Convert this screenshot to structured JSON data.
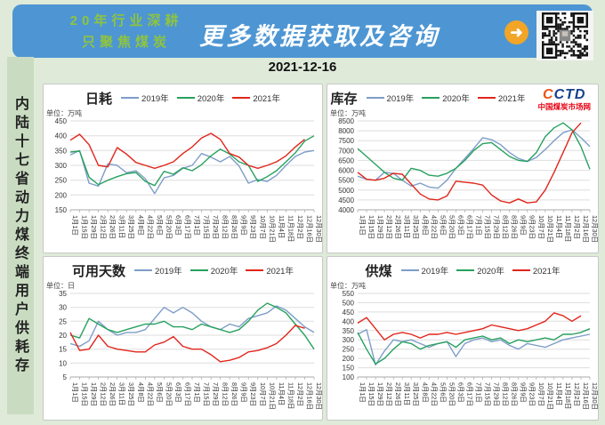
{
  "banner": {
    "tagline_line1": "20年行业深耕",
    "tagline_line2": "只聚焦煤炭",
    "headline": "更多数据获取及咨询",
    "arrow_icon": "➜"
  },
  "report_date": "2021-12-16",
  "sidebar": {
    "vertical_text": "内陆十七省动力煤终端用户供耗存"
  },
  "logo": {
    "text_part1": "C",
    "text_part2": "CTD",
    "subtitle": "中国煤炭市场网"
  },
  "watermark_text": "CCTD",
  "colors": {
    "banner_bg": "#4d96d3",
    "tagline_green": "#8fc43f",
    "arrow_orange": "#f2a527",
    "series_2019": "#7e9dc8",
    "series_2020": "#27a15f",
    "series_2021": "#e1251b",
    "logo_orange": "#ea5514",
    "logo_blue": "#16408c",
    "logo_red": "#e60012"
  },
  "chart_data": [
    {
      "type": "line",
      "title": "日耗",
      "unit": "单位：万吨",
      "ylim": [
        150,
        450
      ],
      "yticks": [
        450,
        400,
        350,
        300,
        250,
        200,
        150
      ],
      "categories": [
        "1月1日",
        "1月15日",
        "1月29日",
        "2月12日",
        "2月26日",
        "3月11日",
        "3月25日",
        "4月8日",
        "4月22日",
        "5月6日",
        "5月20日",
        "6月3日",
        "6月17日",
        "7月1日",
        "7月15日",
        "7月29日",
        "8月12日",
        "8月26日",
        "9月9日",
        "9月23日",
        "10月7日",
        "10月21日",
        "11月4日",
        "11月18日",
        "12月2日",
        "12月16日",
        "12月30日"
      ],
      "series": [
        {
          "name": "2019年",
          "color": "#7e9dc8",
          "values": [
            335,
            350,
            240,
            230,
            305,
            300,
            275,
            282,
            255,
            205,
            258,
            266,
            290,
            300,
            340,
            328,
            312,
            330,
            298,
            240,
            252,
            246,
            266,
            300,
            330,
            345,
            350
          ]
        },
        {
          "name": "2020年",
          "color": "#27a15f",
          "values": [
            345,
            348,
            260,
            235,
            250,
            262,
            272,
            276,
            246,
            232,
            280,
            270,
            292,
            282,
            302,
            332,
            355,
            338,
            312,
            300,
            246,
            262,
            282,
            312,
            342,
            382,
            400
          ]
        },
        {
          "name": "2021年",
          "color": "#e1251b",
          "values": [
            385,
            405,
            370,
            300,
            295,
            360,
            338,
            310,
            300,
            290,
            300,
            312,
            340,
            362,
            392,
            408,
            388,
            340,
            328,
            300,
            290,
            300,
            312,
            332,
            362,
            388,
            null
          ]
        }
      ]
    },
    {
      "type": "line",
      "title": "库存",
      "unit": "单位：万吨",
      "ylim": [
        4000,
        8500
      ],
      "yticks": [
        8500,
        8000,
        7500,
        7000,
        6500,
        6000,
        5500,
        5000,
        4500,
        4000
      ],
      "categories": [
        "1月1日",
        "1月15日",
        "1月29日",
        "2月12日",
        "2月26日",
        "3月11日",
        "3月25日",
        "4月8日",
        "4月22日",
        "5月6日",
        "5月20日",
        "6月3日",
        "6月17日",
        "7月1日",
        "7月15日",
        "7月29日",
        "8月12日",
        "8月26日",
        "9月9日",
        "9月23日",
        "10月7日",
        "10月21日",
        "11月4日",
        "11月18日",
        "12月2日",
        "12月16日",
        "12月30日"
      ],
      "series": [
        {
          "name": "2019年",
          "color": "#7e9dc8",
          "values": [
            5700,
            5550,
            5500,
            5900,
            5850,
            5500,
            5200,
            5350,
            5150,
            5100,
            5500,
            6100,
            6600,
            7100,
            7650,
            7550,
            7300,
            6900,
            6600,
            6450,
            6650,
            7050,
            7500,
            7900,
            8050,
            7650,
            7200
          ]
        },
        {
          "name": "2020年",
          "color": "#27a15f",
          "values": [
            7100,
            6700,
            6300,
            5900,
            5600,
            5500,
            6100,
            6000,
            5750,
            5700,
            5850,
            6100,
            6500,
            7000,
            7350,
            7400,
            7050,
            6700,
            6500,
            6450,
            6900,
            7700,
            8150,
            8400,
            8050,
            7200,
            6050
          ]
        },
        {
          "name": "2021年",
          "color": "#e1251b",
          "values": [
            5900,
            5550,
            5500,
            5600,
            5850,
            5800,
            5300,
            4800,
            4550,
            4500,
            4700,
            5450,
            5400,
            5350,
            5250,
            4750,
            4450,
            4350,
            4550,
            4350,
            4400,
            5000,
            5900,
            6900,
            7900,
            8400,
            null
          ]
        }
      ]
    },
    {
      "type": "line",
      "title": "可用天数",
      "unit": "单位：日",
      "ylim": [
        5,
        35
      ],
      "yticks": [
        35,
        30,
        25,
        20,
        15,
        10,
        5
      ],
      "categories": [
        "1月1日",
        "1月15日",
        "1月29日",
        "2月12日",
        "2月26日",
        "3月11日",
        "3月25日",
        "4月8日",
        "4月22日",
        "5月6日",
        "5月20日",
        "6月3日",
        "6月17日",
        "7月1日",
        "7月15日",
        "7月29日",
        "8月12日",
        "8月26日",
        "9月9日",
        "9月23日",
        "10月7日",
        "10月21日",
        "11月4日",
        "11月18日",
        "12月2日",
        "12月16日",
        "12月30日"
      ],
      "series": [
        {
          "name": "2019年",
          "color": "#7e9dc8",
          "values": [
            17,
            16,
            18,
            25,
            22,
            20,
            21,
            21,
            22,
            26,
            30,
            28,
            30,
            28,
            25,
            23,
            22,
            24,
            23,
            26,
            27,
            28,
            30.5,
            29,
            26,
            23,
            21
          ]
        },
        {
          "name": "2020年",
          "color": "#27a15f",
          "values": [
            20,
            19,
            26,
            24,
            22,
            21,
            22,
            23,
            24,
            24,
            25,
            23,
            23,
            22,
            24,
            23,
            22,
            21,
            22,
            25,
            29,
            31.5,
            30,
            28,
            24,
            20,
            15
          ]
        },
        {
          "name": "2021年",
          "color": "#e1251b",
          "values": [
            21,
            14.5,
            15,
            20,
            16,
            15,
            14.5,
            14,
            14,
            16.5,
            17.5,
            19.5,
            16,
            15,
            15,
            13,
            10.5,
            11,
            12,
            14,
            14.5,
            15.5,
            17,
            20,
            23.5,
            22.5,
            null
          ]
        }
      ]
    },
    {
      "type": "line",
      "title": "供煤",
      "unit": "单位：万吨",
      "ylim": [
        100,
        550
      ],
      "yticks": [
        550,
        500,
        450,
        400,
        350,
        300,
        250,
        200,
        150,
        100
      ],
      "categories": [
        "1月1日",
        "1月15日",
        "1月29日",
        "2月12日",
        "2月26日",
        "3月11日",
        "3月25日",
        "4月8日",
        "4月22日",
        "5月6日",
        "5月20日",
        "6月3日",
        "6月17日",
        "7月1日",
        "7月15日",
        "7月29日",
        "8月12日",
        "8月26日",
        "9月9日",
        "9月23日",
        "10月7日",
        "10月21日",
        "11月4日",
        "11月18日",
        "12月2日",
        "12月16日",
        "12月30日"
      ],
      "series": [
        {
          "name": "2019年",
          "color": "#7e9dc8",
          "values": [
            330,
            355,
            165,
            240,
            300,
            290,
            300,
            280,
            260,
            280,
            290,
            210,
            280,
            300,
            310,
            290,
            300,
            270,
            250,
            280,
            270,
            260,
            280,
            300,
            310,
            320,
            330
          ]
        },
        {
          "name": "2020年",
          "color": "#27a15f",
          "values": [
            340,
            250,
            170,
            200,
            250,
            290,
            280,
            250,
            270,
            280,
            290,
            260,
            300,
            310,
            320,
            300,
            310,
            280,
            300,
            290,
            300,
            310,
            300,
            330,
            330,
            340,
            360
          ]
        },
        {
          "name": "2021年",
          "color": "#e1251b",
          "values": [
            390,
            420,
            360,
            300,
            330,
            340,
            330,
            310,
            330,
            330,
            340,
            330,
            340,
            350,
            360,
            380,
            370,
            360,
            350,
            360,
            380,
            400,
            445,
            430,
            400,
            430,
            null
          ]
        }
      ]
    }
  ]
}
